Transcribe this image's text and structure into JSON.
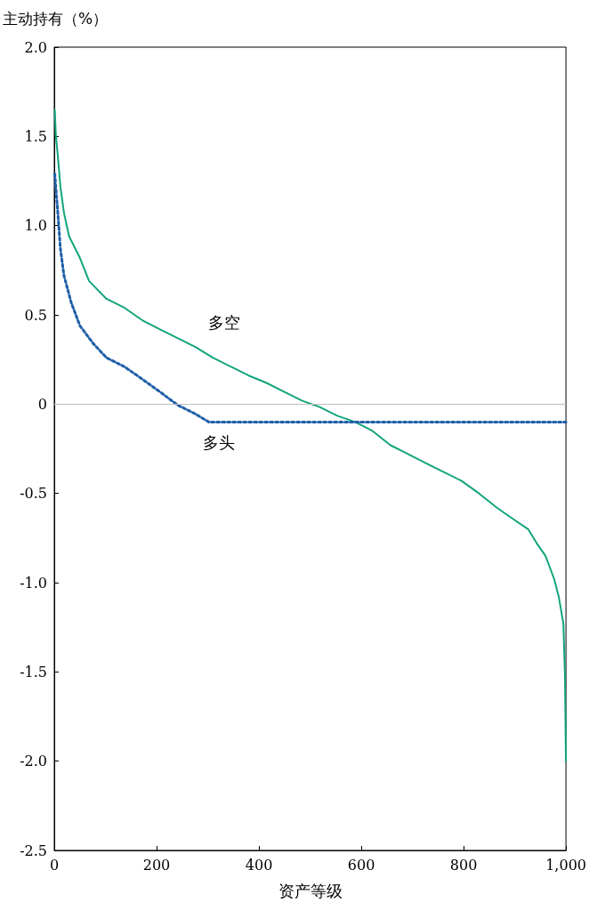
{
  "chart_data": {
    "type": "line",
    "xlabel": "资产等级",
    "ylabel": "主动持有（%）",
    "xlim": [
      0,
      1000
    ],
    "xticks": [
      0,
      200,
      400,
      600,
      800,
      {
        "value": 1000,
        "label": "1,000"
      }
    ],
    "ylim": [
      -2.5,
      2
    ],
    "yticks": [
      {
        "value": 2,
        "label": "2.0"
      },
      1.5,
      {
        "value": 1,
        "label": "1.0"
      },
      0.5,
      0,
      -0.5,
      {
        "value": -1,
        "label": "-1.0"
      },
      -1.5,
      {
        "value": -2,
        "label": "-2.0"
      },
      -2.5
    ],
    "grid": false,
    "legend": false,
    "marker": "none",
    "ref_lines": [
      {
        "axis": "y",
        "value": 0,
        "color": "#c0c0c0"
      }
    ],
    "series": [
      {
        "name": "多空",
        "color": "#12a47c",
        "line_style": "solid",
        "x": [
          1,
          3,
          7,
          12,
          19,
          29,
          50,
          68,
          102,
          137,
          172,
          206,
          241,
          276,
          310,
          345,
          380,
          414,
          449,
          484,
          518,
          553,
          588,
          622,
          657,
          692,
          726,
          761,
          796,
          830,
          865,
          900,
          926,
          943,
          960,
          977,
          986,
          995,
          998,
          1000
        ],
        "values": [
          1.65,
          1.51,
          1.39,
          1.22,
          1.07,
          0.94,
          0.82,
          0.69,
          0.59,
          0.54,
          0.47,
          0.42,
          0.37,
          0.32,
          0.26,
          0.21,
          0.16,
          0.12,
          0.07,
          0.02,
          -0.015,
          -0.065,
          -0.1,
          -0.15,
          -0.23,
          -0.28,
          -0.33,
          -0.38,
          -0.43,
          -0.5,
          -0.58,
          -0.65,
          -0.7,
          -0.78,
          -0.85,
          -0.98,
          -1.08,
          -1.23,
          -1.52,
          -2.0
        ]
      },
      {
        "name": "多头",
        "color": "#1f5fa8",
        "line_style": "dotted",
        "x": [
          1,
          7,
          12,
          19,
          33,
          50,
          76,
          102,
          137,
          172,
          206,
          241,
          276,
          302,
          1000
        ],
        "values": [
          1.29,
          1.07,
          0.87,
          0.72,
          0.57,
          0.44,
          0.34,
          0.26,
          0.21,
          0.14,
          0.07,
          -0.005,
          -0.055,
          -0.1,
          -0.1
        ]
      }
    ]
  }
}
